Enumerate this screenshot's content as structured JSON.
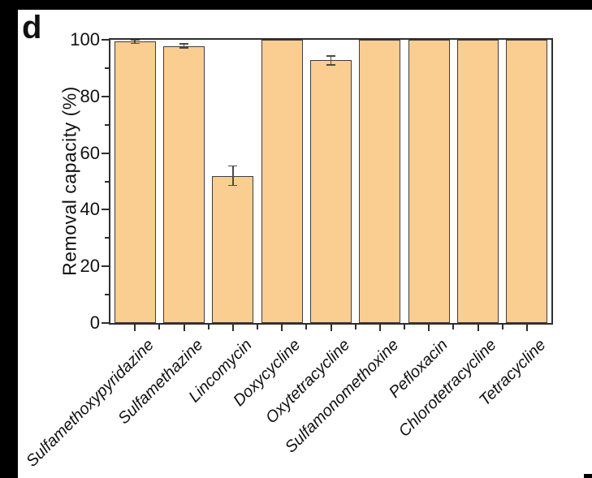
{
  "panel_label": "d",
  "colors": {
    "bar_fill": "#FACD91",
    "bar_border": "#3d3d3d",
    "error_bar": "#4a4a4a",
    "axis": "#2e2e2e",
    "background": "#ffffff",
    "outer_border": "#000000"
  },
  "chart_data": {
    "type": "bar",
    "title": "",
    "xlabel": "",
    "ylabel": "Removal capacity (%)",
    "ylim": [
      0,
      100
    ],
    "yticks": [
      0,
      20,
      40,
      60,
      80,
      100
    ],
    "minor_ytick_step": 10,
    "grid": false,
    "legend_position": "none",
    "categories": [
      "Sulfamethoxypyridazine",
      "Sulfamethazine",
      "Lincomycin",
      "Doxycycline",
      "Oxytetracycline",
      "Sulfamonomethoxine",
      "Pefloxacin",
      "Chlorotetracycline",
      "Tetracycline"
    ],
    "values": [
      99.3,
      97.8,
      52,
      100,
      92.7,
      100,
      100,
      100,
      100
    ],
    "errors": [
      0.4,
      0.5,
      3.2,
      0,
      1.4,
      0,
      0,
      0,
      0
    ]
  }
}
